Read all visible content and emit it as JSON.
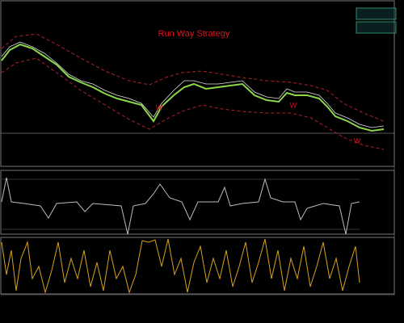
{
  "header": {
    "title": "Run Way Strategy"
  },
  "markers": [
    "W",
    "W",
    "W"
  ]
}
